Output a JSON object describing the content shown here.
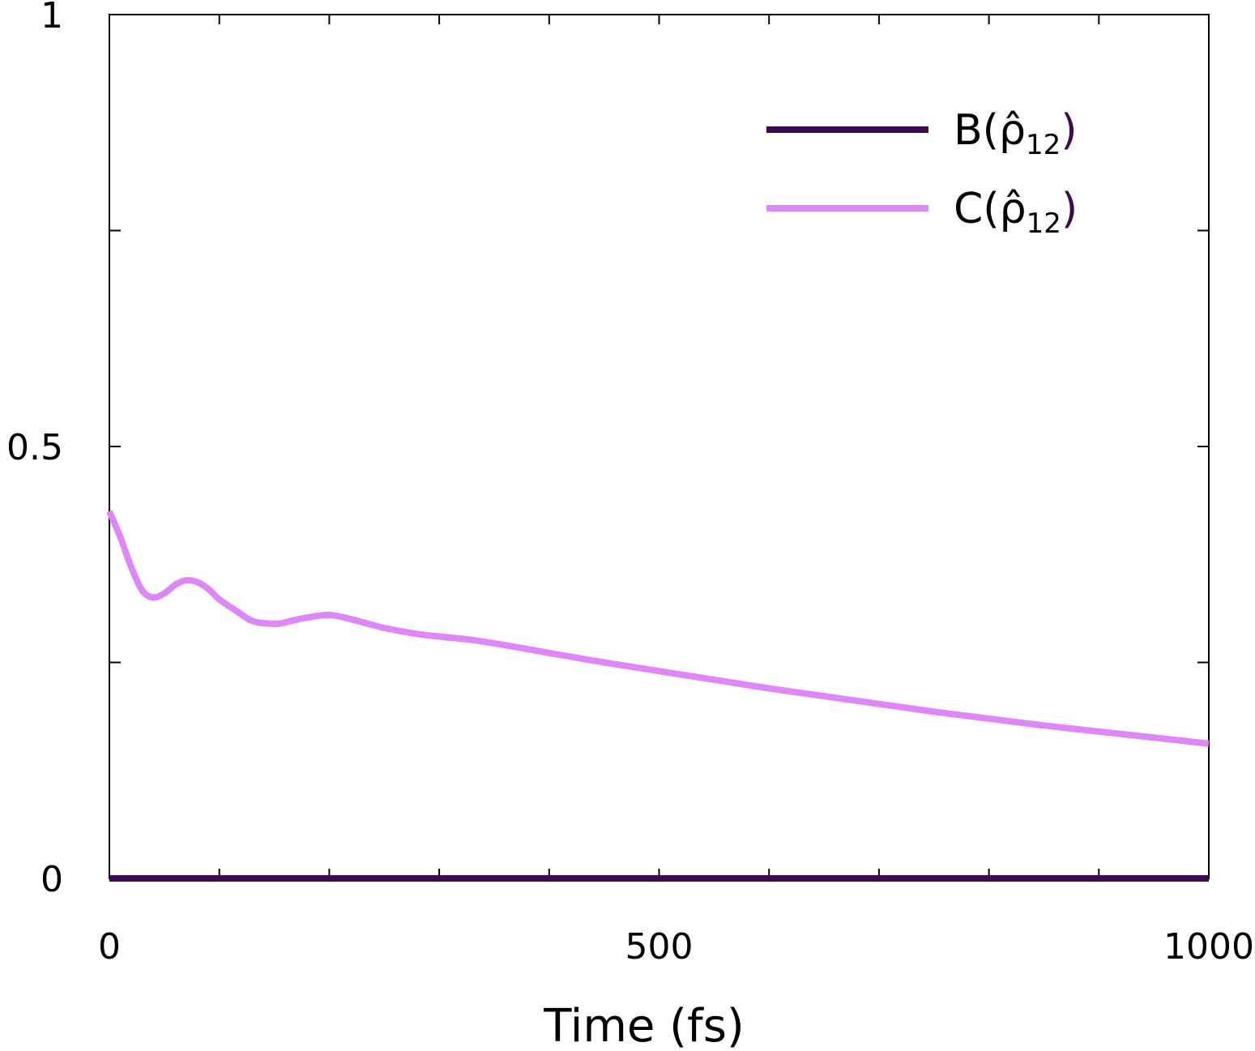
{
  "chart_data": {
    "type": "line",
    "xlabel": "Time (fs)",
    "ylabel": "",
    "xlim": [
      0,
      1000
    ],
    "ylim": [
      0,
      1
    ],
    "x_ticks": [
      "0",
      "500",
      "1000"
    ],
    "y_ticks": [
      "0",
      "0.5",
      "1"
    ],
    "x_minor_ticks": [
      100,
      200,
      300,
      400,
      500,
      600,
      700,
      800,
      900
    ],
    "y_minor_ticks": [
      0.25,
      0.75
    ],
    "legend_position": "top-right",
    "series": [
      {
        "name": "B(ρ̂12)",
        "legend_main": "B(",
        "legend_symbol": "ρ̂",
        "legend_sub": "12",
        "legend_close": ")",
        "color": "#3d0a4f",
        "x": [
          0,
          1000
        ],
        "y": [
          0,
          0
        ]
      },
      {
        "name": "C(ρ̂12)",
        "legend_main": "C(",
        "legend_symbol": "ρ̂",
        "legend_sub": "12",
        "legend_close": ")",
        "color": "#dd88f6",
        "x": [
          0,
          10,
          20,
          30,
          40,
          50,
          60,
          70,
          80,
          90,
          100,
          115,
          130,
          145,
          155,
          165,
          180,
          200,
          220,
          250,
          280,
          300,
          330,
          360,
          400,
          450,
          500,
          550,
          600,
          650,
          700,
          750,
          800,
          850,
          900,
          950,
          1000
        ],
        "y": [
          0.425,
          0.395,
          0.36,
          0.333,
          0.325,
          0.33,
          0.34,
          0.345,
          0.343,
          0.335,
          0.323,
          0.31,
          0.298,
          0.295,
          0.295,
          0.298,
          0.302,
          0.305,
          0.3,
          0.29,
          0.283,
          0.28,
          0.276,
          0.27,
          0.261,
          0.25,
          0.24,
          0.23,
          0.22,
          0.211,
          0.202,
          0.193,
          0.185,
          0.177,
          0.17,
          0.163,
          0.156
        ]
      }
    ]
  }
}
